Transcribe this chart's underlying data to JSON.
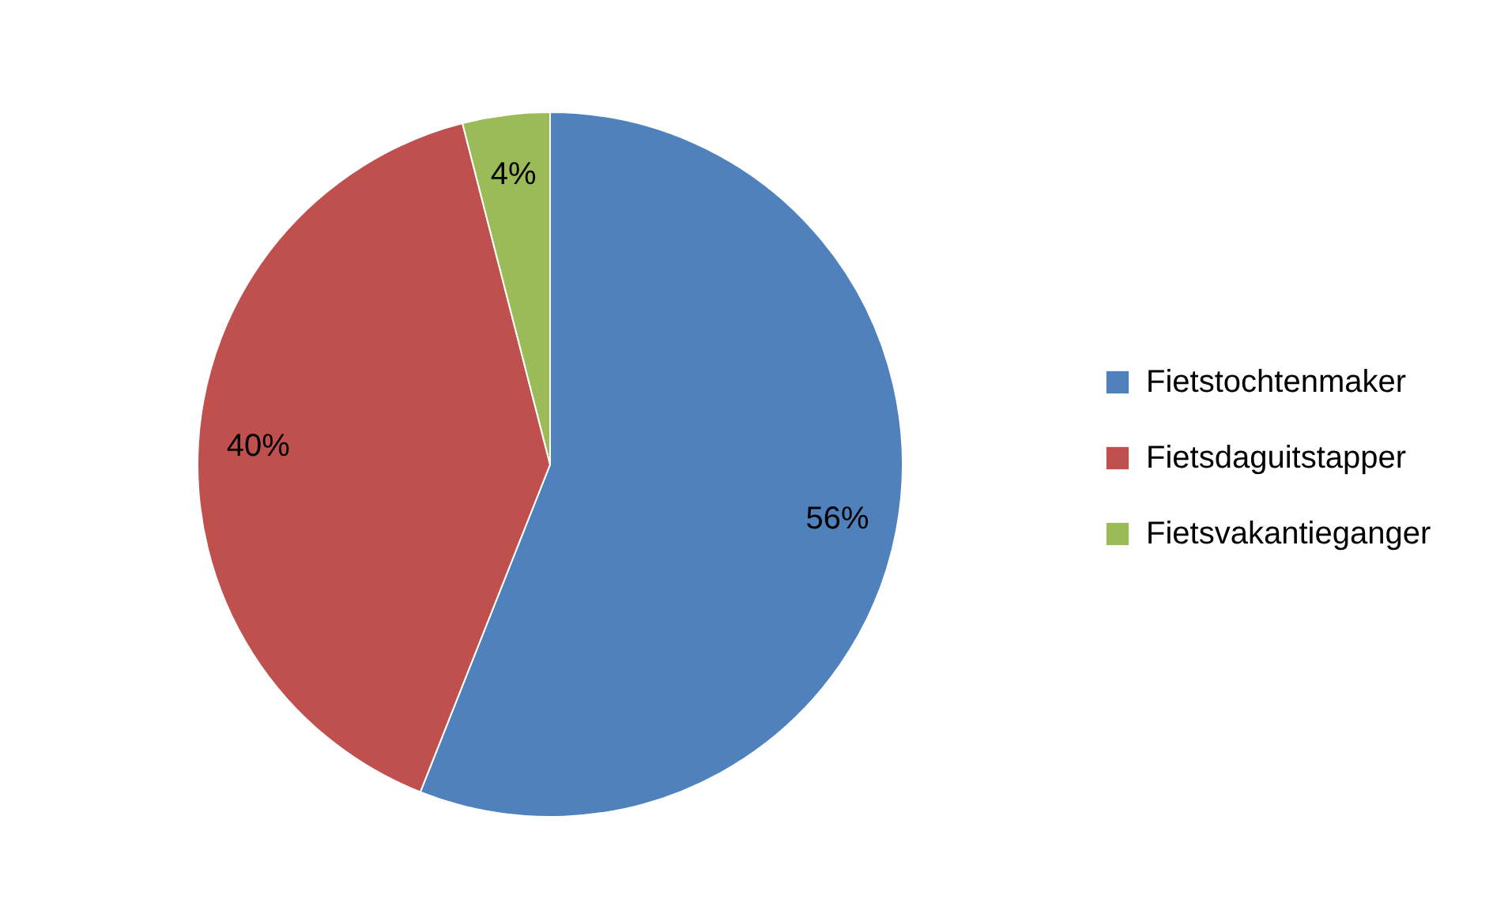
{
  "chart_data": {
    "type": "pie",
    "categories": [
      "Fietstochtenmaker",
      "Fietsdaguitstapper",
      "Fietsvakantieganger"
    ],
    "values": [
      56,
      40,
      4
    ],
    "colors": [
      "#4f81bd",
      "#c0504d",
      "#9bbb59"
    ],
    "value_labels": [
      "56%",
      "40%",
      "4%"
    ],
    "legend": "right"
  }
}
